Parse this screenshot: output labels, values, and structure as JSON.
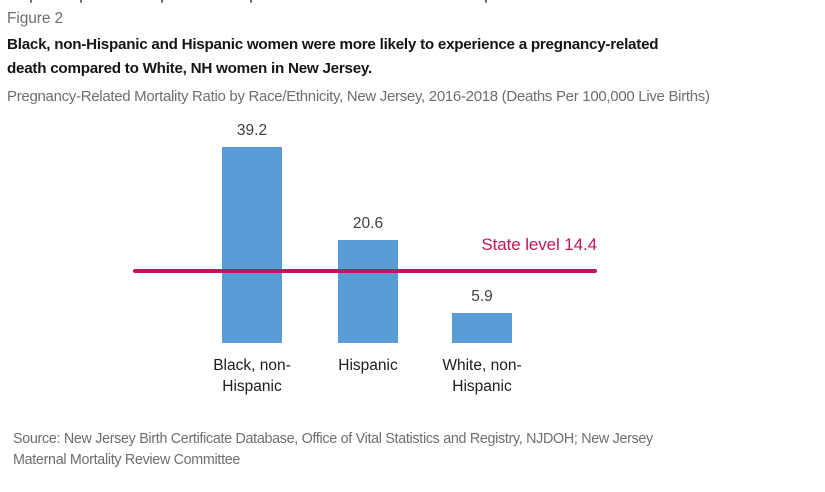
{
  "figure": {
    "label": "Figure 2",
    "headline_lines": [
      "Black, non-Hispanic and Hispanic women were more likely to experience a pregnancy-related",
      "death compared to White, NH women in New Jersey."
    ],
    "subtitle": "Pregnancy-Related Mortality Ratio by Race/Ethnicity, New Jersey, 2016-2018 (Deaths Per 100,000 Live Births)",
    "source_lines": [
      "Source: New Jersey Birth Certificate Database, Office of Vital Statistics and Registry, NJDOH; New Jersey",
      "Maternal Mortality Review Committee"
    ]
  },
  "chart_data": {
    "type": "bar",
    "title": "Pregnancy-Related Mortality Ratio by Race/Ethnicity, New Jersey, 2016-2018 (Deaths Per 100,000 Live Births)",
    "categories": [
      "Black, non-Hispanic",
      "Hispanic",
      "White, non-Hispanic"
    ],
    "category_label_lines": [
      [
        "Black, non-",
        "Hispanic"
      ],
      [
        "Hispanic"
      ],
      [
        "White, non-",
        "Hispanic"
      ]
    ],
    "values": [
      39.2,
      20.6,
      5.9
    ],
    "value_labels": [
      "39.2",
      "20.6",
      "5.9"
    ],
    "unit": "Deaths Per 100,000 Live Births",
    "bar_color": "#5B9BD5",
    "reference_line": {
      "label": "State level 14.4",
      "value": 14.4,
      "color": "#C0155F"
    },
    "xlabel": "",
    "ylabel": "",
    "ylim": [
      0,
      45
    ],
    "grid": false,
    "legend": false,
    "axes_hidden": true
  },
  "colors": {
    "bar": "#5B9BD5",
    "reference_line": "#C0155F",
    "muted_text": "#6E6E6E",
    "headline_text": "#151515",
    "value_label_text": "#3F3F3F"
  }
}
